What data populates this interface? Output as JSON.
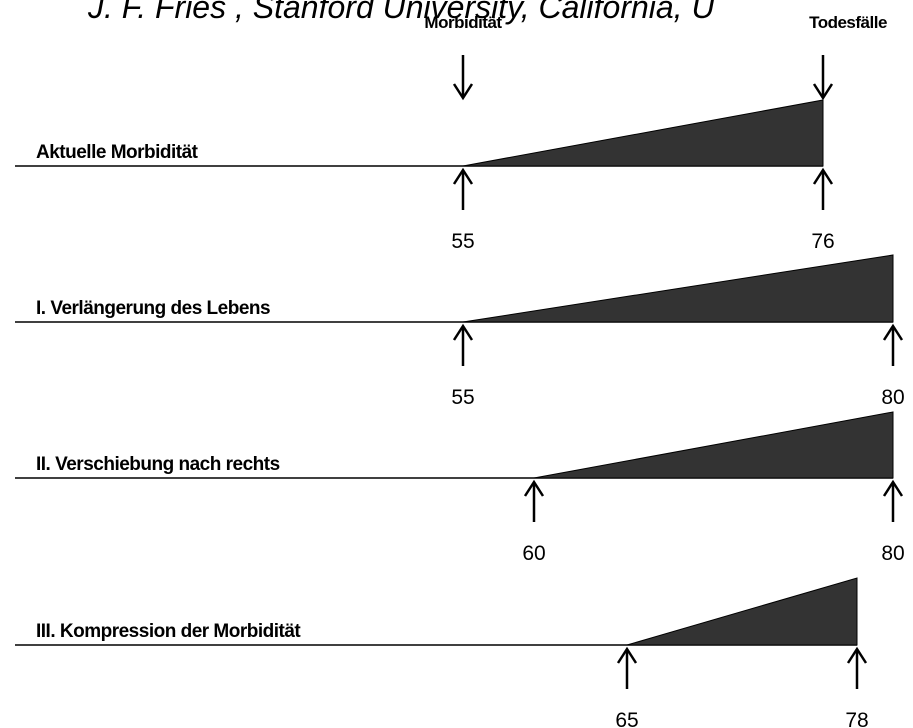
{
  "header": {
    "title": "J. F. Fries , Stanford University, California, U",
    "left_label": "Morbidität",
    "right_label": "Todesfälle"
  },
  "rows": [
    {
      "label": "Aktuelle Morbidität",
      "start": 55,
      "end": 76
    },
    {
      "label": "I. Verlängerung des Lebens",
      "start": 55,
      "end": 80
    },
    {
      "label": "II. Verschiebung nach rechts",
      "start": 60,
      "end": 80
    },
    {
      "label": "III. Kompression der Morbidität",
      "start": 65,
      "end": 78
    }
  ]
}
